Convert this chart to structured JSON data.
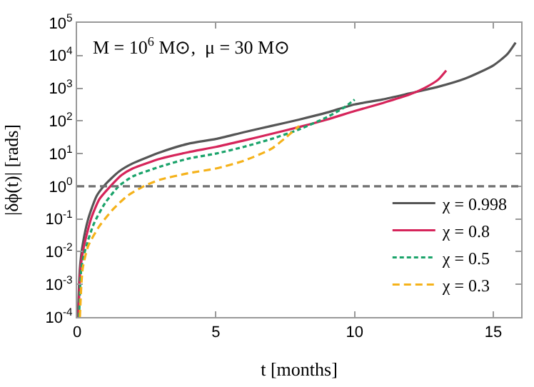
{
  "chart_data": {
    "type": "line",
    "xlabel": "t [months]",
    "ylabel": "|δϕ(t)| [rads]",
    "log": "y",
    "xlim": [
      0,
      16
    ],
    "xticks": [
      0,
      5,
      10,
      15
    ],
    "ylim": [
      0.0001,
      100000
    ],
    "yticks": [
      {
        "value": 0.0001,
        "label": "10$^{-4}$"
      },
      {
        "value": 0.001,
        "label": "10$^{-3}$"
      },
      {
        "value": 0.01,
        "label": "10$^{-2}$"
      },
      {
        "value": 0.1,
        "label": "10$^{-1}$"
      },
      {
        "value": 1,
        "label": "10$^{0}$"
      },
      {
        "value": 10,
        "label": "10$^{1}$"
      },
      {
        "value": 100,
        "label": "10$^{2}$"
      },
      {
        "value": 1000,
        "label": "10$^{3}$"
      },
      {
        "value": 10000,
        "label": "10$^{4}$"
      },
      {
        "value": 100000,
        "label": "10$^{5}$"
      }
    ],
    "legend": "bottom right",
    "marker": "none",
    "annotations": [
      "M = 10$^{6}$ M⊙,  μ = 30 M⊙"
    ],
    "ref_lines": [
      {
        "axis": "y",
        "value": 1,
        "color": "#707070",
        "line_style": "dashed"
      }
    ],
    "series": [
      {
        "name": "χ = 0.998",
        "color": "#555555",
        "line_style": "solid",
        "x": [
          0.03,
          0.1,
          0.2,
          0.4,
          0.7,
          1,
          1.5,
          2,
          3,
          4,
          5,
          6,
          7,
          8,
          9,
          10,
          11,
          12,
          13,
          14,
          15,
          15.5,
          15.8
        ],
        "values": [
          0.0001,
          0.003,
          0.016,
          0.1,
          0.5,
          1.1,
          2.8,
          5,
          11,
          20,
          28,
          45,
          70,
          110,
          180,
          320,
          450,
          700,
          1100,
          2000,
          5000,
          11000,
          25000
        ]
      },
      {
        "name": "χ = 0.8",
        "color": "#d6245a",
        "line_style": "solid",
        "x": [
          0.05,
          0.12,
          0.25,
          0.5,
          0.8,
          1.2,
          1.6,
          2,
          3,
          4,
          5,
          6,
          7,
          8,
          9,
          10,
          11,
          12,
          12.5,
          13,
          13.3
        ],
        "values": [
          0.0001,
          0.003,
          0.015,
          0.1,
          0.4,
          1,
          2.2,
          3.5,
          7,
          11,
          16,
          25,
          40,
          65,
          110,
          200,
          350,
          650,
          1000,
          1800,
          3500
        ]
      },
      {
        "name": "χ = 0.5",
        "color": "#1aa36a",
        "line_style": "dotted",
        "x": [
          0.07,
          0.15,
          0.3,
          0.6,
          1,
          1.5,
          2,
          3,
          4,
          5,
          6,
          7,
          8,
          9,
          9.6,
          10
        ],
        "values": [
          0.0001,
          0.003,
          0.012,
          0.07,
          0.3,
          1,
          2,
          4,
          7,
          10,
          16,
          28,
          55,
          130,
          250,
          450
        ]
      },
      {
        "name": "χ = 0.3",
        "color": "#f5b21a",
        "line_style": "dashed",
        "x": [
          0.1,
          0.2,
          0.4,
          0.8,
          1.3,
          1.8,
          2.4,
          3,
          4,
          5,
          6,
          7,
          7.5,
          8
        ],
        "values": [
          0.0001,
          0.003,
          0.015,
          0.06,
          0.2,
          0.5,
          1,
          1.6,
          2.5,
          3.5,
          6,
          14,
          30,
          70
        ]
      }
    ]
  }
}
